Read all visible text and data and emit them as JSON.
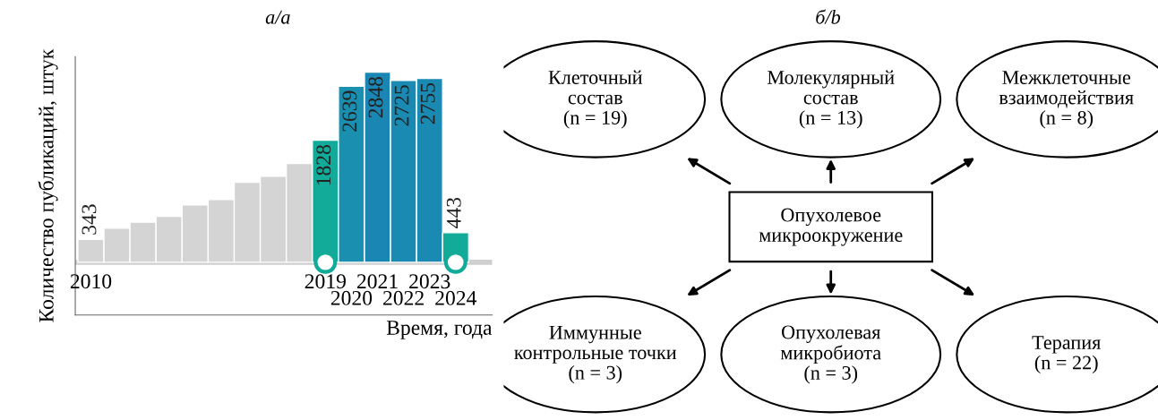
{
  "chart_data": [
    {
      "type": "bar",
      "title": "а/a",
      "xlabel": "Время, года",
      "ylabel": "Количество публикаций, штук",
      "categories": [
        "2010",
        null,
        null,
        null,
        null,
        null,
        null,
        null,
        null,
        "2019",
        "2020",
        "2021",
        "2022",
        "2023",
        "2024"
      ],
      "values": [
        343,
        510,
        600,
        690,
        860,
        940,
        1200,
        1290,
        1480,
        1828,
        2639,
        2848,
        2725,
        2755,
        443
      ],
      "value_labels": [
        "343",
        null,
        null,
        null,
        null,
        null,
        null,
        null,
        null,
        "1828",
        "2639",
        "2848",
        "2725",
        "2755",
        "443"
      ],
      "colors": [
        "#d4d4d4",
        "#d4d4d4",
        "#d4d4d4",
        "#d4d4d4",
        "#d4d4d4",
        "#d4d4d4",
        "#d4d4d4",
        "#d4d4d4",
        "#d4d4d4",
        "#12aa98",
        "#1a8fb0",
        "#1a86b4",
        "#1a8ab2",
        "#1a8ab2",
        "#12aa98"
      ],
      "ylim": [
        -790,
        3080
      ],
      "tick_labels": "x"
    },
    {
      "type": "other",
      "title": "б/b",
      "annotations": [
        "Опухолевое\nмикроокружение",
        "Клеточный\nсостав\n(n = 19)",
        "Молекулярный\nсостав\n(n = 13)",
        "Межклеточные\nвзаимодействия\n(n = 8)",
        "Иммунные\nконтрольные точки\n(n = 3)",
        "Опухолевая\nмикробиота\n(n = 3)",
        "Терапия\n(n = 22)"
      ]
    }
  ]
}
